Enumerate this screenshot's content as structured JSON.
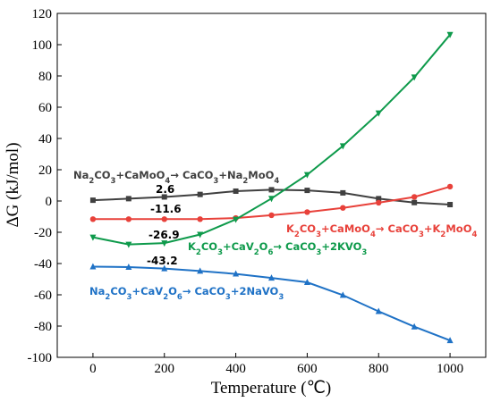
{
  "chart_data": {
    "type": "line",
    "xlabel": "Temperature (℃)",
    "ylabel": "ΔG (kJ/mol)",
    "xlim": [
      -100,
      1100
    ],
    "ylim": [
      -100,
      120
    ],
    "xticks": [
      "0",
      "200",
      "400",
      "600",
      "800",
      "1000"
    ],
    "yticks": [
      "-100",
      "-80",
      "-60",
      "-40",
      "-20",
      "0",
      "20",
      "40",
      "60",
      "80",
      "100",
      "120"
    ],
    "grid": false,
    "x": [
      0,
      100,
      200,
      300,
      400,
      500,
      600,
      700,
      800,
      900,
      1000
    ],
    "series": [
      {
        "label_parts": [
          [
            "Na",
            ""
          ],
          [
            "2",
            "sub"
          ],
          [
            "CO",
            ""
          ],
          [
            "3",
            "sub"
          ],
          [
            "+CaMoO",
            ""
          ],
          [
            "4",
            "sub"
          ],
          [
            "→ CaCO",
            ""
          ],
          [
            "3",
            "sub"
          ],
          [
            "+Na",
            ""
          ],
          [
            "2",
            "sub"
          ],
          [
            "MoO",
            ""
          ],
          [
            "4",
            "sub"
          ]
        ],
        "color": "#404040",
        "marker": "square",
        "values": [
          0.5,
          1.5,
          2.6,
          4.2,
          6.3,
          7.2,
          6.8,
          5.2,
          1.5,
          -1.0,
          -2.3
        ]
      },
      {
        "label_parts": [
          [
            "K",
            ""
          ],
          [
            "2",
            "sub"
          ],
          [
            "CO",
            ""
          ],
          [
            "3",
            "sub"
          ],
          [
            "+CaMoO",
            ""
          ],
          [
            "4",
            "sub"
          ],
          [
            "→ CaCO",
            ""
          ],
          [
            "3",
            "sub"
          ],
          [
            "+K",
            ""
          ],
          [
            "2",
            "sub"
          ],
          [
            "MoO",
            ""
          ],
          [
            "4",
            "sub"
          ]
        ],
        "color": "#e8413a",
        "marker": "circle",
        "values": [
          -11.6,
          -11.6,
          -11.6,
          -11.6,
          -10.9,
          -9.1,
          -7.1,
          -4.4,
          -1.1,
          2.6,
          9.2
        ]
      },
      {
        "label_parts": [
          [
            "K",
            ""
          ],
          [
            "2",
            "sub"
          ],
          [
            "CO",
            ""
          ],
          [
            "3",
            "sub"
          ],
          [
            "+CaV",
            ""
          ],
          [
            "2",
            "sub"
          ],
          [
            "O",
            ""
          ],
          [
            "6",
            "sub"
          ],
          [
            "→ CaCO",
            ""
          ],
          [
            "3",
            "sub"
          ],
          [
            "+2KVO",
            ""
          ],
          [
            "3",
            "sub"
          ]
        ],
        "color": "#0e9a4b",
        "marker": "triangle-down",
        "values": [
          -23.2,
          -27.8,
          -26.9,
          -21.4,
          -11.8,
          1.6,
          16.8,
          35.2,
          56.2,
          79.2,
          106.4
        ]
      },
      {
        "label_parts": [
          [
            "Na",
            ""
          ],
          [
            "2",
            "sub"
          ],
          [
            "CO",
            ""
          ],
          [
            "3",
            "sub"
          ],
          [
            "+CaV",
            ""
          ],
          [
            "2",
            "sub"
          ],
          [
            "O",
            ""
          ],
          [
            "6",
            "sub"
          ],
          [
            "→ CaCO",
            ""
          ],
          [
            "3",
            "sub"
          ],
          [
            "+2NaVO",
            ""
          ],
          [
            "3",
            "sub"
          ]
        ],
        "color": "#1f72c6",
        "marker": "triangle-up",
        "values": [
          -42.0,
          -42.3,
          -43.2,
          -44.8,
          -46.6,
          -49.2,
          -52.0,
          -60.2,
          -70.6,
          -80.4,
          -89.2
        ]
      }
    ],
    "annotations": [
      "2.6",
      "-11.6",
      "-26.9",
      "-43.2"
    ]
  }
}
